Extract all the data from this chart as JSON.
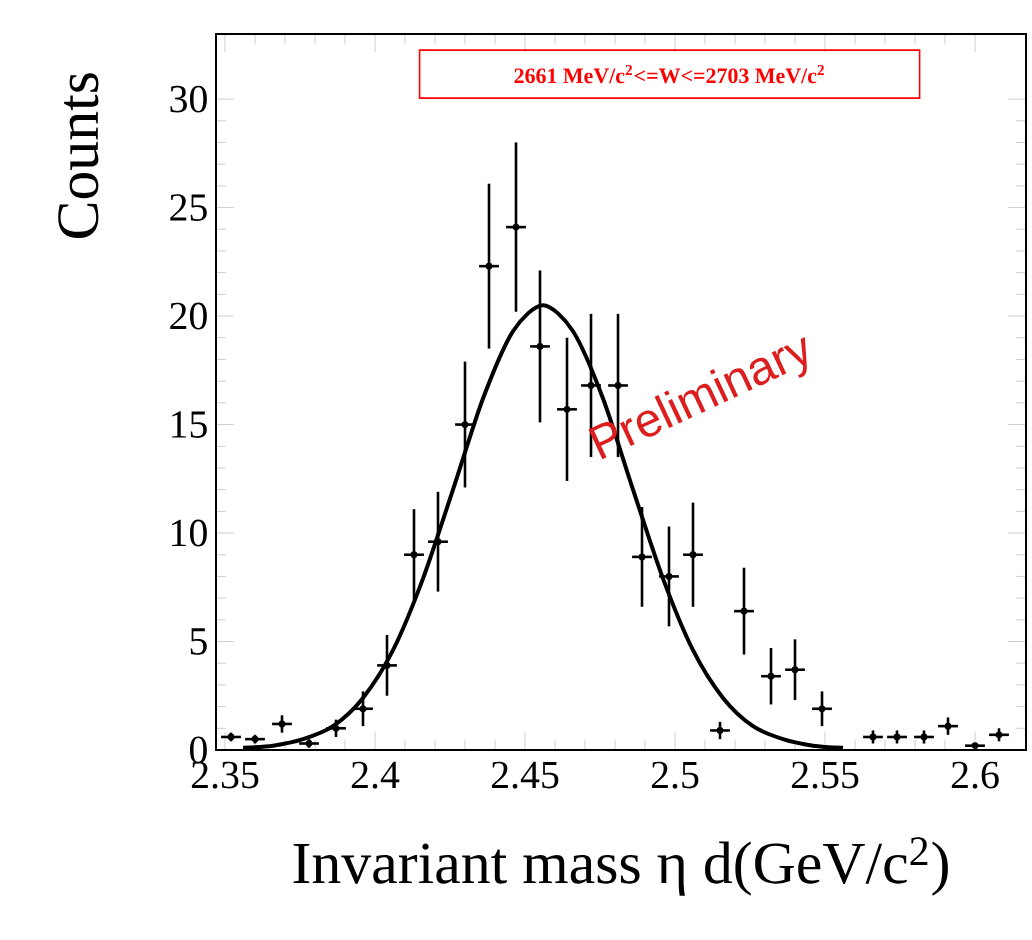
{
  "chart_data": {
    "type": "scatter",
    "xlabel": "Invariant mass η d(GeV/c$^{2}$)",
    "ylabel": "Counts",
    "annotations": [
      "2661 MeV/c$^{2}$<=W<=2703 MeV/c$^{2}$",
      "Preliminary"
    ],
    "xlim": [
      2.347,
      2.617
    ],
    "ylim": [
      0,
      33
    ],
    "xticks": [
      2.35,
      2.4,
      2.45,
      2.5,
      2.55,
      2.6
    ],
    "yticks": [
      0,
      5,
      10,
      15,
      20,
      25,
      30
    ],
    "grid": false,
    "series": [
      {
        "color": "#000000",
        "x": [
          2.352,
          2.36,
          2.369,
          2.378,
          2.387,
          2.396,
          2.404,
          2.413,
          2.421,
          2.43,
          2.438,
          2.447,
          2.455,
          2.464,
          2.472,
          2.481,
          2.489,
          2.498,
          2.506,
          2.515,
          2.523,
          2.532,
          2.54,
          2.549,
          2.566,
          2.574,
          2.583,
          2.591,
          2.6,
          2.608
        ],
        "values": [
          0.6,
          0.5,
          1.2,
          0.3,
          1.0,
          1.9,
          3.9,
          9.0,
          9.6,
          15.0,
          22.3,
          24.1,
          18.6,
          15.7,
          16.8,
          16.8,
          8.9,
          8.0,
          9.0,
          0.9,
          6.4,
          3.4,
          3.7,
          1.9,
          0.6,
          0.6,
          0.6,
          1.1,
          0.2,
          0.7
        ],
        "errors": [
          0.2,
          0.2,
          0.4,
          0.2,
          0.4,
          0.8,
          1.4,
          2.1,
          2.3,
          2.9,
          3.8,
          3.9,
          3.5,
          3.3,
          3.3,
          3.3,
          2.3,
          2.3,
          2.4,
          0.4,
          2.0,
          1.3,
          1.4,
          0.8,
          0.3,
          0.3,
          0.3,
          0.4,
          0.1,
          0.3
        ],
        "xerrors": [
          0.0033,
          0.0033,
          0.0033,
          0.0033,
          0.0033,
          0.0033,
          0.0033,
          0.0033,
          0.0033,
          0.0033,
          0.0033,
          0.0033,
          0.0033,
          0.0033,
          0.0033,
          0.0033,
          0.0033,
          0.0033,
          0.0033,
          0.0033,
          0.0033,
          0.0033,
          0.0033,
          0.0033,
          0.0033,
          0.0033,
          0.0033,
          0.0033,
          0.0033,
          0.0033
        ]
      },
      {
        "type": "line",
        "color": "#000000",
        "line_style": "solid",
        "x": [
          2.356,
          2.366,
          2.376,
          2.386,
          2.396,
          2.406,
          2.416,
          2.426,
          2.436,
          2.446,
          2.456,
          2.466,
          2.476,
          2.486,
          2.496,
          2.506,
          2.516,
          2.526,
          2.536,
          2.546,
          2.556
        ],
        "values": [
          0.1,
          0.2,
          0.5,
          1.1,
          2.4,
          4.6,
          7.9,
          12.0,
          16.2,
          19.3,
          20.5,
          19.3,
          16.2,
          12.0,
          7.9,
          4.6,
          2.4,
          1.1,
          0.5,
          0.2,
          0.1
        ]
      }
    ]
  }
}
